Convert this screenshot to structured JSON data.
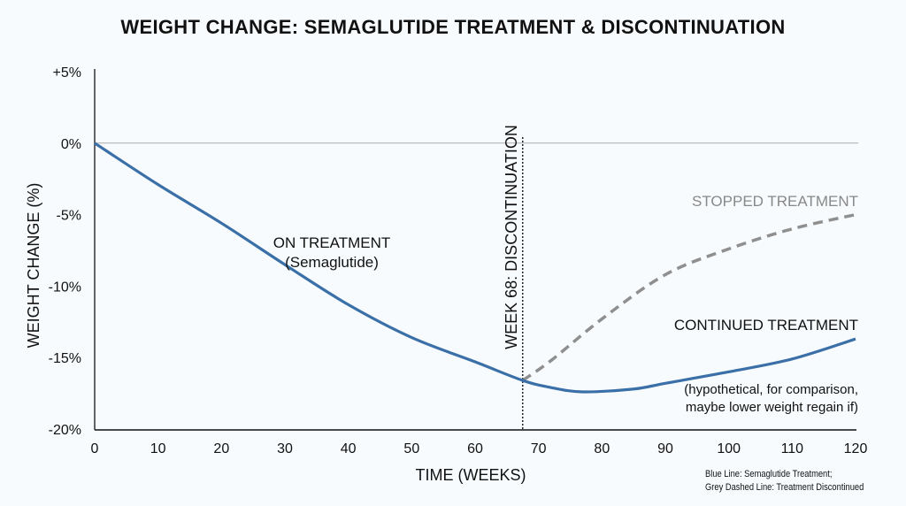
{
  "chart_data": {
    "type": "line",
    "title": "WEIGHT CHANGE: SEMAGLUTIDE TREATMENT & DISCONTINUATION",
    "xlabel": "TIME (WEEKS)",
    "ylabel": "WEIGHT CHANGE (%)",
    "xlim": [
      0,
      120
    ],
    "ylim": [
      -20,
      5
    ],
    "x_ticks": [
      "0",
      "10",
      "20",
      "30",
      "40",
      "50",
      "60",
      "70",
      "80",
      "90",
      "100",
      "110",
      "120"
    ],
    "y_ticks": [
      {
        "value": 5,
        "label": "+5%"
      },
      {
        "value": 0,
        "label": "0%"
      },
      {
        "value": -5,
        "label": "-5%"
      },
      {
        "value": -10,
        "label": "-10%"
      },
      {
        "value": -15,
        "label": "-15%"
      },
      {
        "value": -20,
        "label": "-20%"
      }
    ],
    "zero_line": true,
    "series": [
      {
        "name": "Semaglutide Treatment",
        "color": "#3a6fa8",
        "style": "solid",
        "x": [
          0,
          10,
          20,
          30,
          40,
          50,
          60,
          67.5,
          72,
          77,
          85,
          90,
          100,
          110,
          120
        ],
        "y": [
          0,
          -2.9,
          -5.6,
          -8.5,
          -11.3,
          -13.6,
          -15.3,
          -16.6,
          -17.1,
          -17.4,
          -17.2,
          -16.8,
          -16.0,
          -15.1,
          -13.7
        ]
      },
      {
        "name": "Treatment Discontinued",
        "color": "#8f8f8f",
        "style": "dashed",
        "x": [
          67.5,
          72,
          80,
          90,
          100,
          110,
          120
        ],
        "y": [
          -16.6,
          -15.2,
          -12.3,
          -9.2,
          -7.4,
          -6.0,
          -5.0
        ]
      }
    ],
    "vline": {
      "x": 67.5,
      "label": "WEEK 68: DISCONTINUATION"
    },
    "annotations": {
      "on_treatment": "ON TREATMENT",
      "on_treatment_sub": "(Semaglutide)",
      "stopped": "STOPPED TREATMENT",
      "continued": "CONTINUED TREATMENT",
      "hypo_1": "(hypothetical, for comparison,",
      "hypo_2": "maybe lower weight regain if)"
    },
    "legend_note": [
      "Blue Line: Semaglutide Treatment;",
      "Grey Dashed Line: Treatment Discontinued"
    ]
  }
}
